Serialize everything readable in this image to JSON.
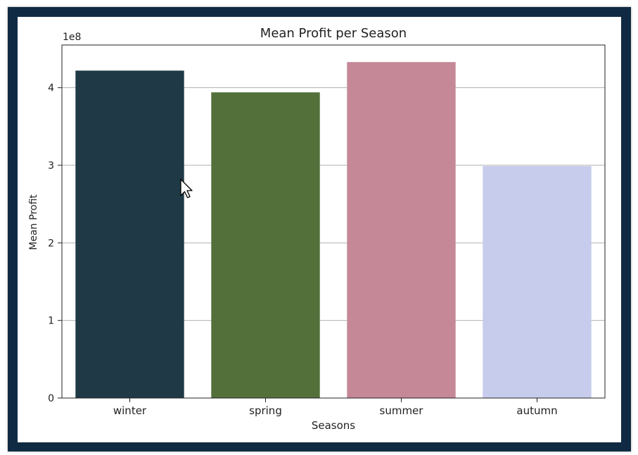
{
  "chart_data": {
    "type": "bar",
    "title": "Mean Profit per Season",
    "xlabel": "Seasons",
    "ylabel": "Mean Profit",
    "y_offset_label": "1e8",
    "categories": [
      "winter",
      "spring",
      "summer",
      "autumn"
    ],
    "values": [
      4.22,
      3.94,
      4.33,
      2.99
    ],
    "colors": [
      "#1f3a46",
      "#53703a",
      "#c58897",
      "#c7cbec"
    ],
    "ylim": [
      0,
      4.55
    ],
    "yticks": [
      0,
      1,
      2,
      3,
      4
    ],
    "ytick_labels": [
      "0",
      "1",
      "2",
      "3",
      "4"
    ],
    "grid": "horizontal"
  }
}
